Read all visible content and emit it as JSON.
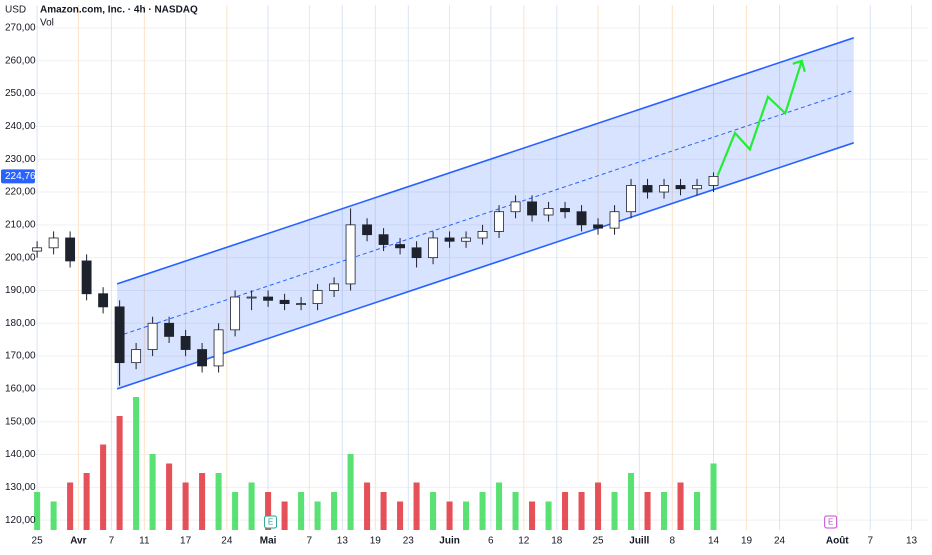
{
  "chart_data": {
    "type": "candlestick",
    "header": {
      "currency": "USD",
      "title": "Amazon.com, Inc. · 4h · NASDAQ",
      "volume_label": "Vol"
    },
    "x": [
      0,
      2,
      4,
      6,
      8,
      10,
      12,
      14,
      16,
      18,
      20,
      22,
      24,
      26,
      28,
      30,
      32,
      34,
      36,
      38,
      40,
      42,
      44,
      46,
      48,
      50,
      52,
      54,
      56,
      58,
      60,
      62,
      64,
      66,
      68,
      70,
      72,
      74,
      76,
      78,
      80,
      82
    ],
    "open": [
      202,
      203,
      206,
      199,
      189,
      185,
      168,
      172,
      180,
      176,
      172,
      167,
      178,
      188,
      188,
      187,
      186,
      186,
      190,
      192,
      210,
      207,
      204,
      203,
      200,
      206,
      205,
      206,
      208,
      214,
      217,
      213,
      215,
      214,
      210,
      209,
      214,
      222,
      220,
      222,
      221,
      222
    ],
    "high": [
      205,
      208,
      208,
      201,
      191,
      187,
      174,
      182,
      182,
      178,
      174,
      180,
      190,
      190,
      190,
      189,
      188,
      192,
      194,
      215,
      212,
      209,
      206,
      205,
      208,
      208,
      208,
      210,
      216,
      219,
      219,
      217,
      217,
      216,
      212,
      216,
      224,
      224,
      224,
      224,
      224,
      226
    ],
    "low": [
      200,
      201,
      197,
      187,
      183,
      161,
      166,
      170,
      174,
      170,
      165,
      165,
      176,
      184,
      185,
      184,
      184,
      184,
      188,
      190,
      205,
      202,
      201,
      197,
      198,
      203,
      203,
      204,
      206,
      212,
      211,
      211,
      212,
      208,
      207,
      207,
      212,
      218,
      218,
      219,
      219,
      220
    ],
    "close": [
      203,
      206,
      199,
      189,
      185,
      168,
      172,
      180,
      176,
      172,
      167,
      178,
      188,
      188,
      187,
      186,
      186,
      190,
      192,
      210,
      207,
      204,
      203,
      200,
      206,
      205,
      206,
      208,
      214,
      217,
      213,
      215,
      214,
      210,
      209,
      214,
      222,
      220,
      222,
      221,
      222,
      224.76
    ],
    "volume": [
      20,
      15,
      25,
      30,
      45,
      60,
      70,
      40,
      35,
      25,
      30,
      30,
      20,
      25,
      20,
      15,
      20,
      15,
      20,
      40,
      25,
      20,
      15,
      25,
      20,
      15,
      15,
      20,
      25,
      20,
      15,
      15,
      20,
      20,
      25,
      20,
      30,
      20,
      20,
      25,
      20,
      35
    ],
    "vol_ylim": [
      0,
      100
    ],
    "up_color": "#ffffff",
    "down_color": "#1e222d",
    "vol_up_color": "#3ddc5a",
    "vol_down_color": "#e0323c",
    "ylim": [
      117,
      277
    ],
    "yticks": [
      {
        "value": 120,
        "label": "120,00"
      },
      {
        "value": 130,
        "label": "130,00"
      },
      {
        "value": 140,
        "label": "140,00"
      },
      {
        "value": 150,
        "label": "150,00"
      },
      {
        "value": 160,
        "label": "160,00"
      },
      {
        "value": 170,
        "label": "170,00"
      },
      {
        "value": 180,
        "label": "180,00"
      },
      {
        "value": 190,
        "label": "190,00"
      },
      {
        "value": 200,
        "label": "200,00"
      },
      {
        "value": 210,
        "label": "210,00"
      },
      {
        "value": 220,
        "label": "220,00"
      },
      {
        "value": 230,
        "label": "230,00"
      },
      {
        "value": 240,
        "label": "240,00"
      },
      {
        "value": 250,
        "label": "250,00"
      },
      {
        "value": 260,
        "label": "260,00"
      },
      {
        "value": 270,
        "label": "270,00"
      }
    ],
    "xlim": [
      -4.5,
      108
    ],
    "xticks": [
      {
        "value": 0,
        "label": "25"
      },
      {
        "value": 5,
        "label": "Avr"
      },
      {
        "value": 9,
        "label": "7"
      },
      {
        "value": 13,
        "label": "11"
      },
      {
        "value": 18,
        "label": "17"
      },
      {
        "value": 23,
        "label": "24"
      },
      {
        "value": 28,
        "label": "Mai"
      },
      {
        "value": 33,
        "label": "7"
      },
      {
        "value": 37,
        "label": "13"
      },
      {
        "value": 41,
        "label": "19"
      },
      {
        "value": 45,
        "label": "23"
      },
      {
        "value": 50,
        "label": "Juin"
      },
      {
        "value": 55,
        "label": "6"
      },
      {
        "value": 59,
        "label": "12"
      },
      {
        "value": 63,
        "label": "18"
      },
      {
        "value": 68,
        "label": "25"
      },
      {
        "value": 73,
        "label": "Juill"
      },
      {
        "value": 77,
        "label": "8"
      },
      {
        "value": 82,
        "label": "14"
      },
      {
        "value": 86,
        "label": "19"
      },
      {
        "value": 90,
        "label": "24"
      },
      {
        "value": 97,
        "label": "Août"
      },
      {
        "value": 101,
        "label": "7"
      },
      {
        "value": 106,
        "label": "13"
      }
    ],
    "grid": true,
    "price_label": {
      "value": 224.76,
      "label": "224,76"
    },
    "channel": {
      "color": "#2962ff",
      "fill": "#2962ff",
      "upper": {
        "x": [
          9.7,
          99
        ],
        "y": [
          192,
          267
        ]
      },
      "lower": {
        "x": [
          9.7,
          99
        ],
        "y": [
          160,
          235
        ]
      },
      "middle": {
        "x": [
          9.7,
          99
        ],
        "y": [
          176,
          251
        ]
      }
    },
    "projection": {
      "color": "#22ee33",
      "x": [
        82.5,
        84.6,
        86.4,
        88.6,
        90.7,
        92.7
      ],
      "y": [
        225,
        238,
        233,
        249,
        244,
        260
      ]
    },
    "events": [
      {
        "x": 28.3,
        "label": "E"
      },
      {
        "x": 96.2,
        "label": "E"
      }
    ]
  }
}
